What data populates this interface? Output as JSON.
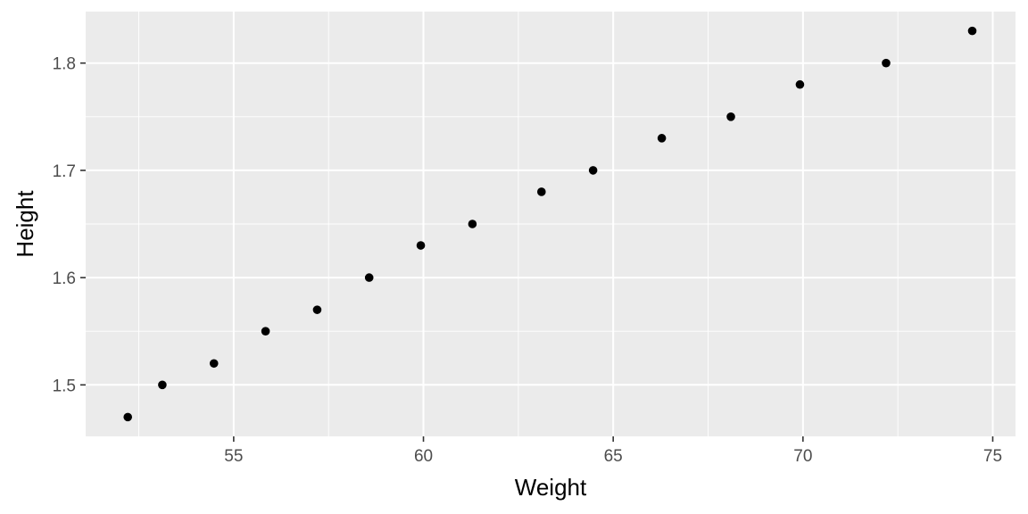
{
  "chart_data": {
    "type": "scatter",
    "xlabel": "Weight",
    "ylabel": "Height",
    "xlim": [
      51.1,
      75.6
    ],
    "ylim": [
      1.452,
      1.848
    ],
    "x_ticks": [
      55,
      60,
      65,
      70,
      75
    ],
    "y_ticks": [
      1.5,
      1.6,
      1.7,
      1.8
    ],
    "x_tick_labels": [
      "55",
      "60",
      "65",
      "70",
      "75"
    ],
    "y_tick_labels": [
      "1.5",
      "1.6",
      "1.7",
      "1.8"
    ],
    "grid": true,
    "colors": {
      "panel": "#ebebeb",
      "grid": "#ffffff",
      "point": "#000000"
    },
    "points": [
      {
        "x": 52.21,
        "y": 1.47
      },
      {
        "x": 53.12,
        "y": 1.5
      },
      {
        "x": 54.48,
        "y": 1.52
      },
      {
        "x": 55.84,
        "y": 1.55
      },
      {
        "x": 57.2,
        "y": 1.57
      },
      {
        "x": 58.57,
        "y": 1.6
      },
      {
        "x": 59.93,
        "y": 1.63
      },
      {
        "x": 61.29,
        "y": 1.65
      },
      {
        "x": 63.11,
        "y": 1.68
      },
      {
        "x": 64.47,
        "y": 1.7
      },
      {
        "x": 66.28,
        "y": 1.73
      },
      {
        "x": 68.1,
        "y": 1.75
      },
      {
        "x": 69.92,
        "y": 1.78
      },
      {
        "x": 72.19,
        "y": 1.8
      },
      {
        "x": 74.46,
        "y": 1.83
      }
    ]
  }
}
